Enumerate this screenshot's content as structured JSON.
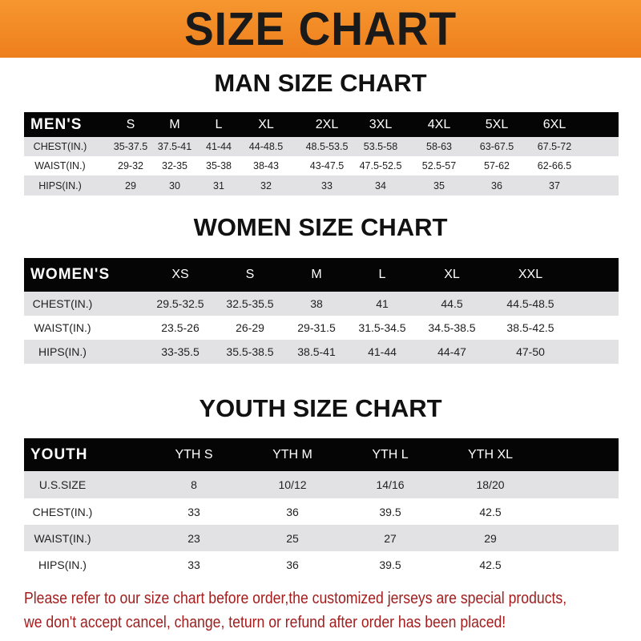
{
  "banner": {
    "title": "SIZE CHART",
    "color": "#f28a26"
  },
  "notice_color": "#a31d1d",
  "tables": [
    {
      "title": "MAN SIZE CHART",
      "header": "MEN'S",
      "columns": [
        "S",
        "M",
        "L",
        "XL",
        "2XL",
        "3XL",
        "4XL",
        "5XL",
        "6XL"
      ],
      "rows": [
        {
          "label": "CHEST(IN.)",
          "values": [
            "35-37.5",
            "37.5-41",
            "41-44",
            "44-48.5",
            "48.5-53.5",
            "53.5-58",
            "58-63",
            "63-67.5",
            "67.5-72"
          ]
        },
        {
          "label": "WAIST(IN.)",
          "values": [
            "29-32",
            "32-35",
            "35-38",
            "38-43",
            "43-47.5",
            "47.5-52.5",
            "52.5-57",
            "57-62",
            "62-66.5"
          ]
        },
        {
          "label": "HIPS(IN.)",
          "values": [
            "29",
            "30",
            "31",
            "32",
            "33",
            "34",
            "35",
            "36",
            "37"
          ]
        }
      ]
    },
    {
      "title": "WOMEN SIZE CHART",
      "header": "WOMEN'S",
      "columns": [
        "XS",
        "S",
        "M",
        "L",
        "XL",
        "XXL"
      ],
      "rows": [
        {
          "label": "CHEST(IN.)",
          "values": [
            "29.5-32.5",
            "32.5-35.5",
            "38",
            "41",
            "44.5",
            "44.5-48.5"
          ]
        },
        {
          "label": "WAIST(IN.)",
          "values": [
            "23.5-26",
            "26-29",
            "29-31.5",
            "31.5-34.5",
            "34.5-38.5",
            "38.5-42.5"
          ]
        },
        {
          "label": "HIPS(IN.)",
          "values": [
            "33-35.5",
            "35.5-38.5",
            "38.5-41",
            "41-44",
            "44-47",
            "47-50"
          ]
        }
      ]
    },
    {
      "title": "YOUTH SIZE CHART",
      "header": "YOUTH",
      "columns": [
        "YTH S",
        "YTH M",
        "YTH L",
        "YTH XL"
      ],
      "rows": [
        {
          "label": "U.S.SIZE",
          "values": [
            "8",
            "10/12",
            "14/16",
            "18/20"
          ]
        },
        {
          "label": "CHEST(IN.)",
          "values": [
            "33",
            "36",
            "39.5",
            "42.5"
          ]
        },
        {
          "label": "WAIST(IN.)",
          "values": [
            "23",
            "25",
            "27",
            "29"
          ]
        },
        {
          "label": "HIPS(IN.)",
          "values": [
            "33",
            "36",
            "39.5",
            "42.5"
          ]
        }
      ]
    }
  ],
  "notice": [
    "Please refer to our size chart before order,the customized jerseys are special products,",
    "we don't accept cancel, change, teturn or refund after order has been placed!"
  ]
}
